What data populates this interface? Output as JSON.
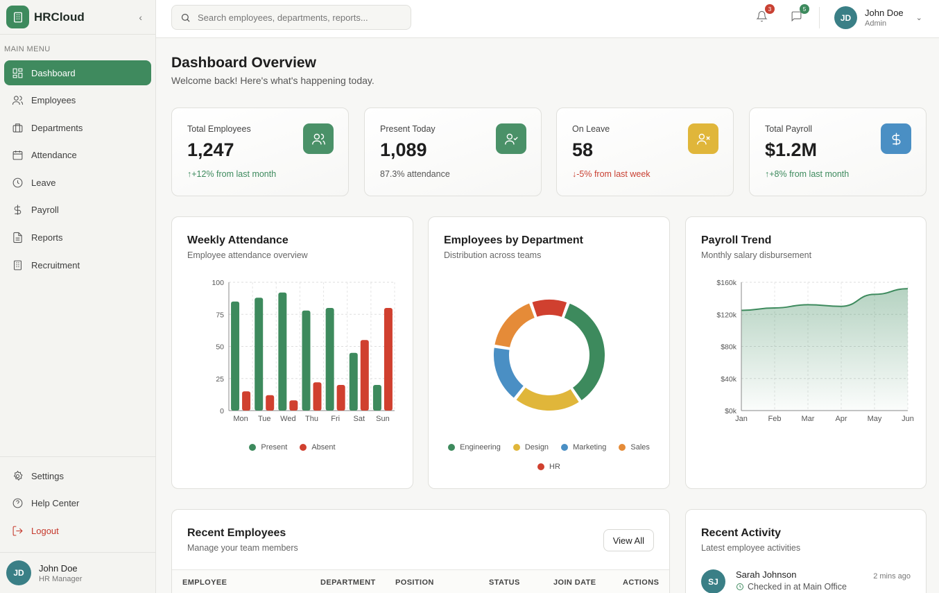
{
  "brand": {
    "name": "HRCloud"
  },
  "sidebar": {
    "section_title": "MAIN MENU",
    "items": [
      {
        "label": "Dashboard",
        "icon": "grid-icon",
        "active": true
      },
      {
        "label": "Employees",
        "icon": "users-icon"
      },
      {
        "label": "Departments",
        "icon": "briefcase-icon"
      },
      {
        "label": "Attendance",
        "icon": "calendar-icon"
      },
      {
        "label": "Leave",
        "icon": "clock-icon"
      },
      {
        "label": "Payroll",
        "icon": "dollar-icon"
      },
      {
        "label": "Reports",
        "icon": "file-icon"
      },
      {
        "label": "Recruitment",
        "icon": "building-icon"
      }
    ],
    "bottom_items": [
      {
        "label": "Settings",
        "icon": "gear-icon"
      },
      {
        "label": "Help Center",
        "icon": "help-icon"
      },
      {
        "label": "Logout",
        "icon": "logout-icon"
      }
    ],
    "user": {
      "initials": "JD",
      "name": "John Doe",
      "role": "HR Manager"
    }
  },
  "topbar": {
    "search_placeholder": "Search employees, departments, reports...",
    "notifications_count": "3",
    "messages_count": "5",
    "user": {
      "initials": "JD",
      "name": "John Doe",
      "role": "Admin"
    }
  },
  "header": {
    "title": "Dashboard Overview",
    "subtitle": "Welcome back! Here's what's happening today."
  },
  "stats": [
    {
      "label": "Total Employees",
      "value": "1,247",
      "trend": "+12% from last month",
      "trend_dir": "up",
      "icon": "users-icon",
      "color": "#4a9168"
    },
    {
      "label": "Present Today",
      "value": "1,089",
      "trend": "87.3% attendance",
      "trend_dir": "neutral",
      "icon": "user-check-icon",
      "color": "#4a9168"
    },
    {
      "label": "On Leave",
      "value": "58",
      "trend": "-5% from last week",
      "trend_dir": "down",
      "icon": "user-x-icon",
      "color": "#e0b63a"
    },
    {
      "label": "Total Payroll",
      "value": "$1.2M",
      "trend": "+8% from last month",
      "trend_dir": "up",
      "icon": "dollar-icon",
      "color": "#4a8fc4"
    }
  ],
  "charts": {
    "attendance": {
      "title": "Weekly Attendance",
      "subtitle": "Employee attendance overview"
    },
    "departments": {
      "title": "Employees by Department",
      "subtitle": "Distribution across teams"
    },
    "payroll": {
      "title": "Payroll Trend",
      "subtitle": "Monthly salary disbursement"
    }
  },
  "chart_data": [
    {
      "type": "bar",
      "categories": [
        "Mon",
        "Tue",
        "Wed",
        "Thu",
        "Fri",
        "Sat",
        "Sun"
      ],
      "series": [
        {
          "name": "Present",
          "values": [
            85,
            88,
            92,
            78,
            80,
            45,
            20
          ],
          "color": "#3d8a5d"
        },
        {
          "name": "Absent",
          "values": [
            15,
            12,
            8,
            22,
            20,
            55,
            80
          ],
          "color": "#d0402f"
        }
      ],
      "yticks": [
        "0",
        "25",
        "50",
        "75",
        "100"
      ],
      "ylim": [
        0,
        100
      ]
    },
    {
      "type": "pie",
      "categories": [
        "Engineering",
        "Design",
        "Marketing",
        "Sales",
        "HR"
      ],
      "values": [
        35,
        20,
        17,
        17,
        11
      ],
      "colors": [
        "#3d8a5d",
        "#e0b63a",
        "#4a8fc4",
        "#e58b38",
        "#d0402f"
      ]
    },
    {
      "type": "area",
      "categories": [
        "Jan",
        "Feb",
        "Mar",
        "Apr",
        "May",
        "Jun"
      ],
      "values": [
        125000,
        128000,
        132000,
        130000,
        145000,
        152000
      ],
      "yticks": [
        "$0k",
        "$40k",
        "$80k",
        "$120k",
        "$160k"
      ],
      "ylim": [
        0,
        160000
      ],
      "color": "#3d8a5d"
    }
  ],
  "recent_employees": {
    "title": "Recent Employees",
    "subtitle": "Manage your team members",
    "view_all": "View All",
    "columns": [
      "EMPLOYEE",
      "DEPARTMENT",
      "POSITION",
      "STATUS",
      "JOIN DATE",
      "ACTIONS"
    ]
  },
  "recent_activity": {
    "title": "Recent Activity",
    "subtitle": "Latest employee activities",
    "items": [
      {
        "initials": "SJ",
        "name": "Sarah Johnson",
        "desc": "Checked in at Main Office",
        "time": "2 mins ago"
      }
    ]
  }
}
